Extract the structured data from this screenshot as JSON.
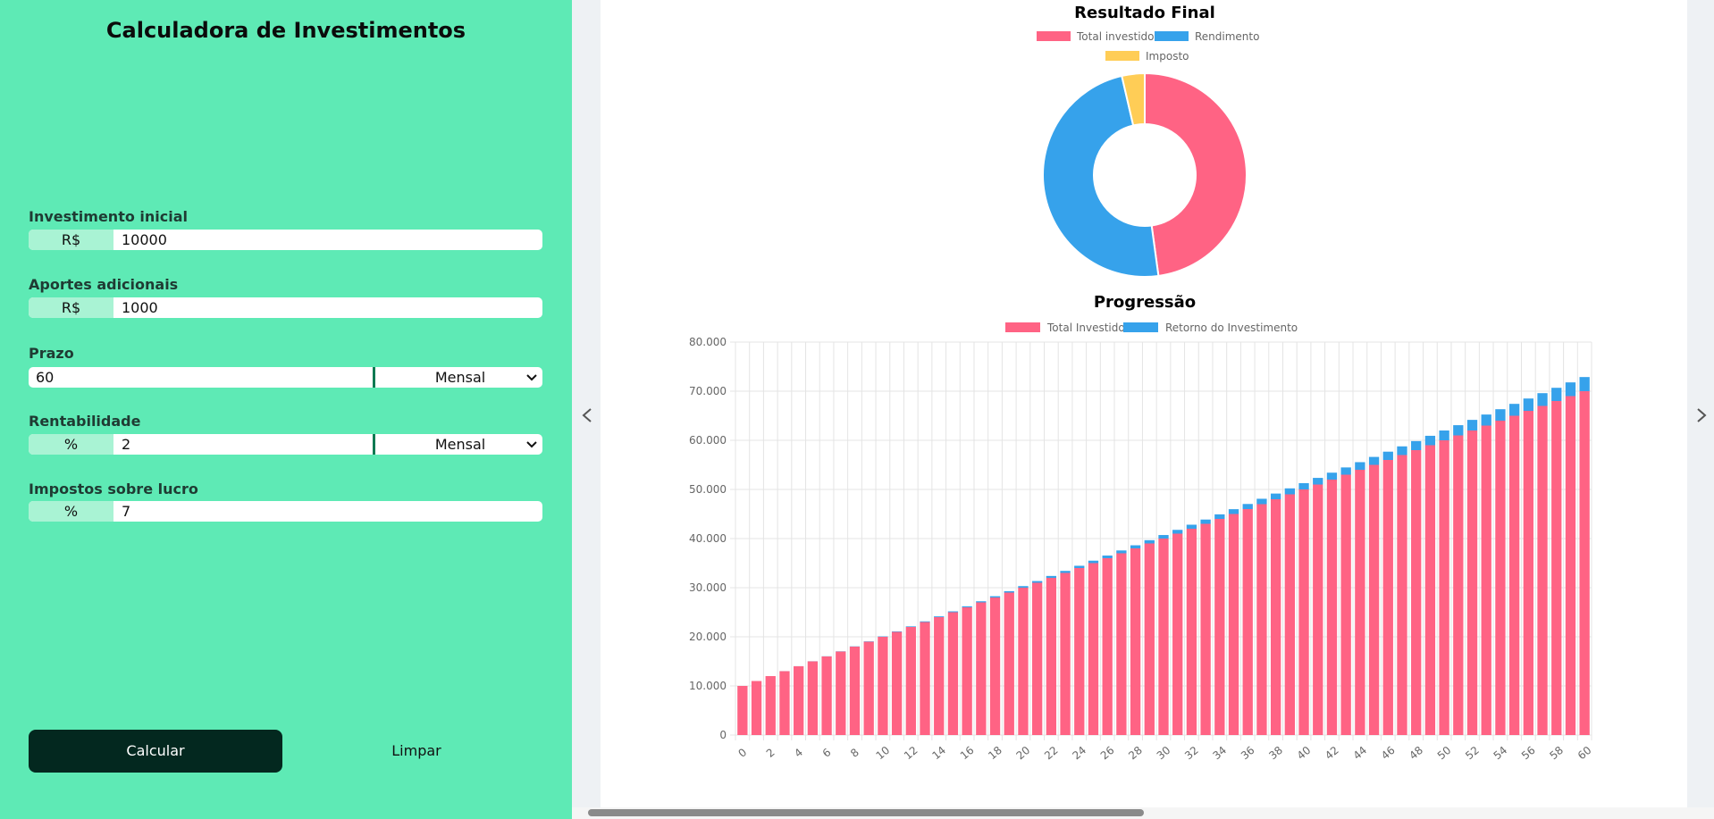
{
  "form": {
    "title": "Calculadora de Investimentos",
    "fields": [
      {
        "label": "Investimento inicial",
        "prefix": "R$",
        "value": "10000"
      },
      {
        "label": "Aportes adicionais",
        "prefix": "R$",
        "value": "1000"
      },
      {
        "label": "Prazo",
        "value": "60",
        "select": "Mensal"
      },
      {
        "label": "Rentabilidade",
        "prefix": "%",
        "value": "2",
        "select": "Mensal"
      },
      {
        "label": "Impostos sobre lucro",
        "prefix": "%",
        "value": "7"
      }
    ],
    "buttons": [
      "Calcular",
      "Limpar"
    ]
  },
  "chart_data": [
    {
      "type": "pie",
      "title": "Resultado Final",
      "donut": true,
      "categories": [
        "Total investido",
        "Rendimento",
        "Imposto"
      ],
      "values": [
        70000,
        71000,
        5300
      ],
      "colors": [
        "#ff6384",
        "#36a2eb",
        "#ffcd56"
      ]
    },
    {
      "type": "bar",
      "title": "Progressão",
      "stacked": true,
      "grid": true,
      "categories": [
        0,
        null,
        2,
        null,
        4,
        null,
        6,
        null,
        8,
        null,
        10,
        null,
        12,
        null,
        14,
        null,
        16,
        null,
        18,
        null,
        20,
        null,
        22,
        null,
        24,
        null,
        26,
        null,
        28,
        null,
        30,
        null,
        32,
        null,
        34,
        null,
        36,
        null,
        38,
        null,
        40,
        null,
        42,
        null,
        44,
        null,
        46,
        null,
        48,
        null,
        50,
        null,
        52,
        null,
        54,
        null,
        56,
        null,
        58,
        null,
        60
      ],
      "series": [
        {
          "name": "Total Investido",
          "color": "#ff6384",
          "values": [
            10000,
            11000,
            12000,
            13000,
            14000,
            15000,
            16000,
            17000,
            18000,
            19000,
            20000,
            21000,
            22000,
            23000,
            24000,
            25000,
            26000,
            27000,
            28000,
            29000,
            30000,
            31000,
            32000,
            33000,
            34000,
            35000,
            36000,
            37000,
            38000,
            39000,
            40000,
            41000,
            42000,
            43000,
            44000,
            45000,
            46000,
            47000,
            48000,
            49000,
            50000,
            51000,
            52000,
            53000,
            54000,
            55000,
            56000,
            57000,
            58000,
            59000,
            60000,
            61000,
            62000,
            63000,
            64000,
            65000,
            66000,
            67000,
            68000,
            69000,
            70000
          ]
        },
        {
          "name": "Retorno do Investimento",
          "color": "#36a2eb",
          "values": [
            0,
            0,
            0,
            10,
            10,
            20,
            30,
            40,
            50,
            70,
            80,
            100,
            120,
            140,
            160,
            180,
            210,
            230,
            260,
            290,
            320,
            350,
            390,
            420,
            460,
            500,
            540,
            580,
            630,
            670,
            720,
            770,
            820,
            870,
            930,
            980,
            1040,
            1100,
            1160,
            1220,
            1280,
            1350,
            1410,
            1480,
            1550,
            1620,
            1690,
            1770,
            1840,
            1920,
            2000,
            2080,
            2160,
            2250,
            2330,
            2420,
            2510,
            2600,
            2690,
            2790,
            2880
          ]
        }
      ],
      "ylim": [
        0,
        80000
      ],
      "yticks": [
        0,
        {
          "value": 10000,
          "label": "10.000"
        },
        {
          "value": 20000,
          "label": "20.000"
        },
        {
          "value": 30000,
          "label": "30.000"
        },
        {
          "value": 40000,
          "label": "40.000"
        },
        {
          "value": 50000,
          "label": "50.000"
        },
        {
          "value": 60000,
          "label": "60.000"
        },
        {
          "value": 70000,
          "label": "70.000"
        },
        {
          "value": 80000,
          "label": "80.000"
        }
      ]
    }
  ]
}
